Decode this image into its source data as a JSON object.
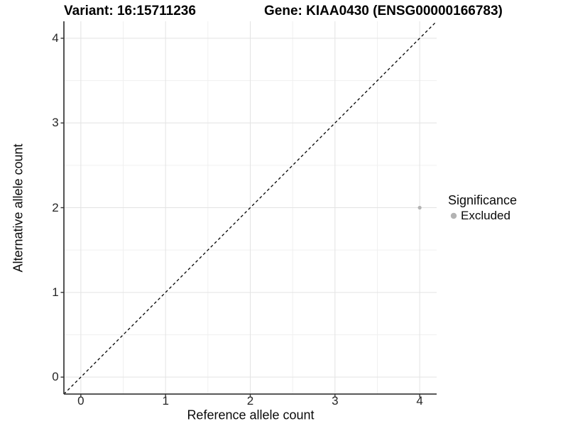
{
  "chart_data": {
    "type": "scatter",
    "title_left": "Variant: 16:15711236",
    "title_right": "Gene: KIAA0430 (ENSG00000166783)",
    "xlabel": "Reference allele count",
    "ylabel": "Alternative allele count",
    "xlim": [
      -0.2,
      4.2
    ],
    "ylim": [
      -0.2,
      4.2
    ],
    "xticks": [
      0,
      1,
      2,
      3,
      4
    ],
    "yticks": [
      0,
      1,
      2,
      3,
      4
    ],
    "grid": {
      "major": true,
      "minor": true,
      "major_color": "#e3e3e3",
      "minor_color": "#f0f0f0"
    },
    "identity_line": {
      "style": "dashed",
      "color": "#000000",
      "from": [
        -0.2,
        -0.2
      ],
      "to": [
        4.2,
        4.2
      ]
    },
    "points": [
      {
        "x": 4,
        "y": 2,
        "series": "Excluded",
        "color": "#b3b3b3"
      }
    ],
    "legend": {
      "title": "Significance",
      "position": "right",
      "items": [
        {
          "label": "Excluded",
          "color": "#b3b3b3"
        }
      ]
    },
    "axis_color": "#404040",
    "tick_color": "#333333"
  }
}
